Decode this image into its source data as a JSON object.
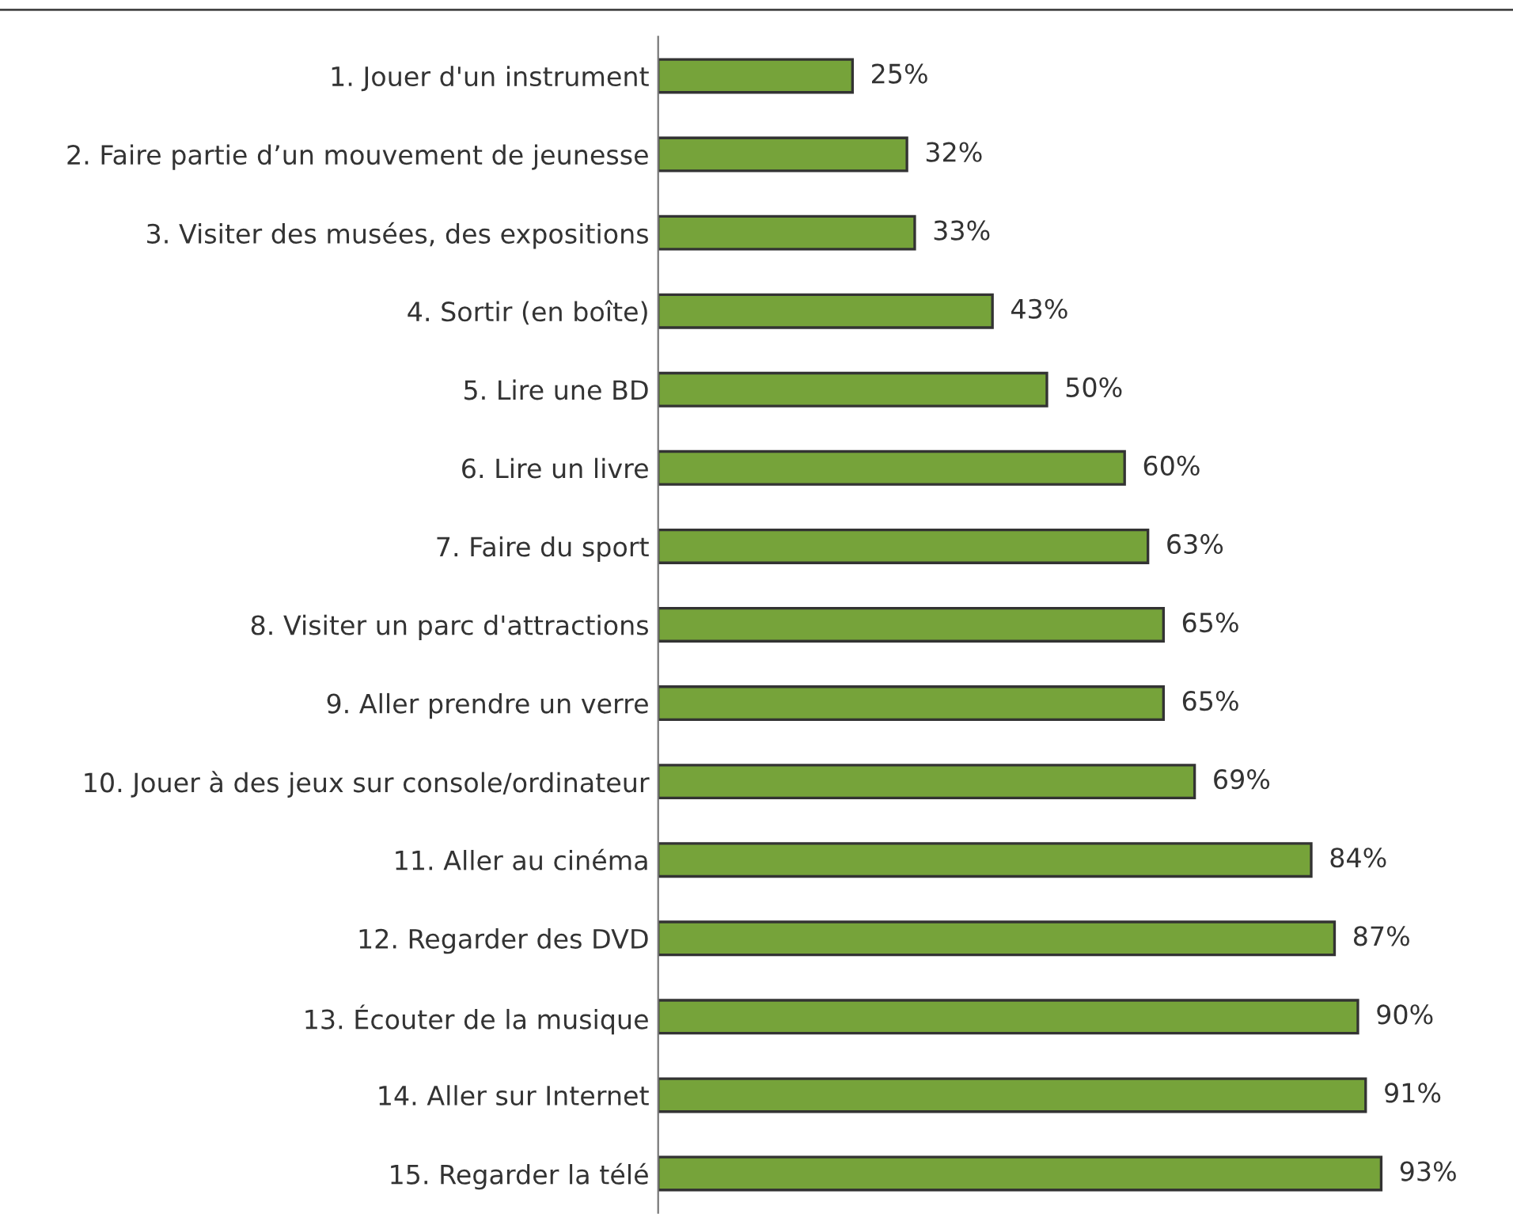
{
  "chart_data": {
    "type": "bar",
    "orientation": "horizontal",
    "categories": [
      "1. Jouer d'un instrument",
      "2. Faire partie d’un mouvement de jeunesse",
      "3. Visiter des musées, des expositions",
      "4. Sortir (en boîte)",
      "5. Lire une BD",
      "6. Lire un livre",
      "7. Faire du sport",
      "8. Visiter un parc d'attractions",
      "9. Aller prendre un verre",
      "10. Jouer à des jeux sur console/ordinateur",
      "11. Aller au cinéma",
      "12. Regarder des DVD",
      "13. Écouter de la musique",
      "14. Aller sur Internet",
      "15. Regarder la télé"
    ],
    "values": [
      25,
      32,
      33,
      43,
      50,
      60,
      63,
      65,
      65,
      69,
      84,
      87,
      90,
      91,
      93
    ],
    "value_labels": [
      "25%",
      "32%",
      "33%",
      "43%",
      "50%",
      "60%",
      "63%",
      "65%",
      "65%",
      "69%",
      "84%",
      "87%",
      "90%",
      "91%",
      "93%"
    ],
    "color": "#76a33a"
  }
}
